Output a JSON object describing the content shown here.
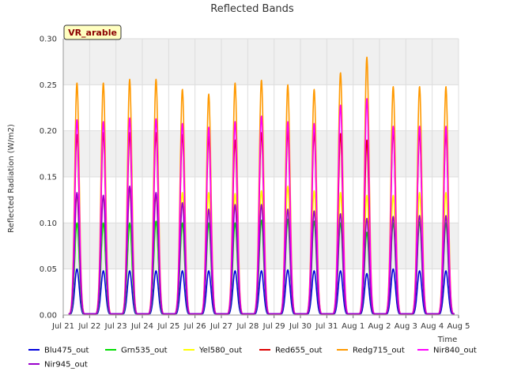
{
  "chart_data": {
    "type": "line",
    "title": "Reflected Bands",
    "xlabel": "Time",
    "ylabel": "Reflected Radiation (W/m2)",
    "badge": "VR_arable",
    "ylim": [
      0.0,
      0.3
    ],
    "y_ticks": [
      "0.00",
      "0.05",
      "0.10",
      "0.15",
      "0.20",
      "0.25",
      "0.30"
    ],
    "x_ticks": [
      "Jul 21",
      "Jul 22",
      "Jul 23",
      "Jul 24",
      "Jul 25",
      "Jul 26",
      "Jul 27",
      "Jul 28",
      "Jul 29",
      "Jul 30",
      "Jul 31",
      "Aug 1",
      "Aug 2",
      "Aug 3",
      "Aug 4",
      "Aug 5"
    ],
    "grid": true,
    "legend_position": "bottom",
    "day_centers": [
      21.52,
      22.52,
      23.52,
      24.52,
      25.52,
      26.52,
      27.52,
      28.52,
      29.52,
      30.52,
      31.52,
      32.52,
      33.52,
      34.52,
      35.52
    ],
    "series": [
      {
        "name": "Blu475_out",
        "color": "#0000dd",
        "peaks": [
          0.05,
          0.048,
          0.048,
          0.048,
          0.048,
          0.048,
          0.048,
          0.048,
          0.049,
          0.048,
          0.048,
          0.045,
          0.05,
          0.048,
          0.048
        ]
      },
      {
        "name": "Grn535_out",
        "color": "#00dd00",
        "peaks": [
          0.1,
          0.1,
          0.1,
          0.102,
          0.1,
          0.1,
          0.1,
          0.103,
          0.104,
          0.102,
          0.1,
          0.09,
          0.1,
          0.101,
          0.1
        ]
      },
      {
        "name": "Yel580_out",
        "color": "#ffff00",
        "peaks": [
          0.13,
          0.13,
          0.135,
          0.13,
          0.133,
          0.133,
          0.132,
          0.135,
          0.14,
          0.135,
          0.133,
          0.13,
          0.13,
          0.133,
          0.133
        ]
      },
      {
        "name": "Red655_out",
        "color": "#dd0000",
        "peaks": [
          0.196,
          0.198,
          0.198,
          0.198,
          0.196,
          0.194,
          0.19,
          0.198,
          0.2,
          0.198,
          0.197,
          0.19,
          0.2,
          0.198,
          0.198
        ]
      },
      {
        "name": "Redg715_out",
        "color": "#ff9900",
        "peaks": [
          0.252,
          0.252,
          0.256,
          0.256,
          0.245,
          0.24,
          0.252,
          0.255,
          0.25,
          0.245,
          0.263,
          0.28,
          0.248,
          0.248,
          0.248
        ]
      },
      {
        "name": "Nir840_out",
        "color": "#ff00ff",
        "peaks": [
          0.212,
          0.21,
          0.214,
          0.213,
          0.208,
          0.204,
          0.21,
          0.216,
          0.21,
          0.208,
          0.228,
          0.235,
          0.205,
          0.205,
          0.205
        ]
      },
      {
        "name": "Nir945_out",
        "color": "#9900cc",
        "peaks": [
          0.133,
          0.13,
          0.14,
          0.133,
          0.122,
          0.115,
          0.12,
          0.12,
          0.115,
          0.113,
          0.11,
          0.105,
          0.107,
          0.108,
          0.108
        ]
      }
    ]
  }
}
